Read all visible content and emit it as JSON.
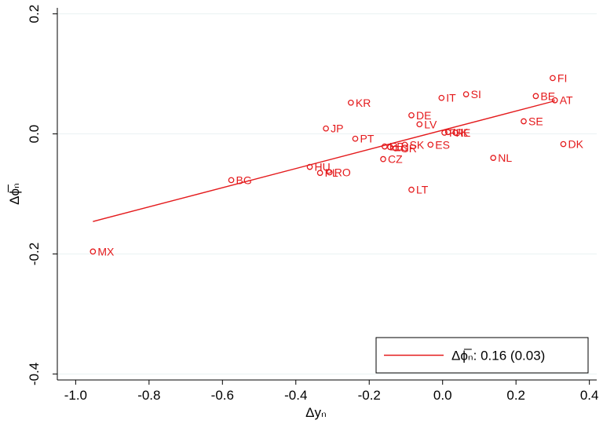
{
  "chart_data": {
    "type": "scatter",
    "xlabel": "Δyₙ",
    "ylabel": "Δϕ̅ₙ",
    "xlim": [
      -1.05,
      0.42
    ],
    "ylim": [
      -0.41,
      0.21
    ],
    "grid": true,
    "x_ticks": [
      -1.0,
      -0.8,
      -0.6,
      -0.4,
      -0.2,
      0.0,
      0.2,
      0.4
    ],
    "y_ticks": [
      -0.4,
      -0.2,
      0.0,
      0.2
    ],
    "x_tick_labels": [
      "-1.0",
      "-0.8",
      "-0.6",
      "-0.4",
      "-0.2",
      "0.0",
      "0.2",
      "0.4"
    ],
    "y_tick_labels": [
      "-0.4",
      "-0.2",
      "0.0",
      "0.2"
    ],
    "points": [
      {
        "label": "MX",
        "x": -0.953,
        "y": -0.196
      },
      {
        "label": "BG",
        "x": -0.576,
        "y": -0.077
      },
      {
        "label": "HU",
        "x": -0.362,
        "y": -0.055
      },
      {
        "label": "PL",
        "x": -0.334,
        "y": -0.065
      },
      {
        "label": "RO",
        "x": -0.308,
        "y": -0.064
      },
      {
        "label": "JP",
        "x": -0.318,
        "y": 0.009
      },
      {
        "label": "KR",
        "x": -0.25,
        "y": 0.052
      },
      {
        "label": "PT",
        "x": -0.238,
        "y": -0.008
      },
      {
        "label": "CZ",
        "x": -0.162,
        "y": -0.042
      },
      {
        "label": "EE",
        "x": -0.158,
        "y": -0.021
      },
      {
        "label": "LU",
        "x": -0.143,
        "y": -0.022
      },
      {
        "label": "GR",
        "x": -0.128,
        "y": -0.024
      },
      {
        "label": "SK",
        "x": -0.103,
        "y": -0.018
      },
      {
        "label": "LT",
        "x": -0.085,
        "y": -0.093
      },
      {
        "label": "DE",
        "x": -0.085,
        "y": 0.031
      },
      {
        "label": "LV",
        "x": -0.063,
        "y": 0.016
      },
      {
        "label": "ES",
        "x": -0.033,
        "y": -0.018
      },
      {
        "label": "IT",
        "x": -0.003,
        "y": 0.06
      },
      {
        "label": "FR",
        "x": 0.005,
        "y": 0.002
      },
      {
        "label": "UK",
        "x": 0.015,
        "y": 0.003
      },
      {
        "label": "IE",
        "x": 0.035,
        "y": 0.002
      },
      {
        "label": "SI",
        "x": 0.064,
        "y": 0.066
      },
      {
        "label": "NL",
        "x": 0.138,
        "y": -0.04
      },
      {
        "label": "SE",
        "x": 0.221,
        "y": 0.021
      },
      {
        "label": "BE",
        "x": 0.254,
        "y": 0.063
      },
      {
        "label": "FI",
        "x": 0.3,
        "y": 0.093
      },
      {
        "label": "AT",
        "x": 0.306,
        "y": 0.056
      },
      {
        "label": "DK",
        "x": 0.329,
        "y": -0.017
      }
    ],
    "series": [
      {
        "name": "Δϕ̅ₙ: 0.16 (0.03)",
        "type": "line",
        "x": [
          -0.953,
          0.306
        ],
        "y": [
          -0.146,
          0.055
        ]
      }
    ],
    "legend_placement": "bottom-right",
    "color": "#e41a1c"
  }
}
